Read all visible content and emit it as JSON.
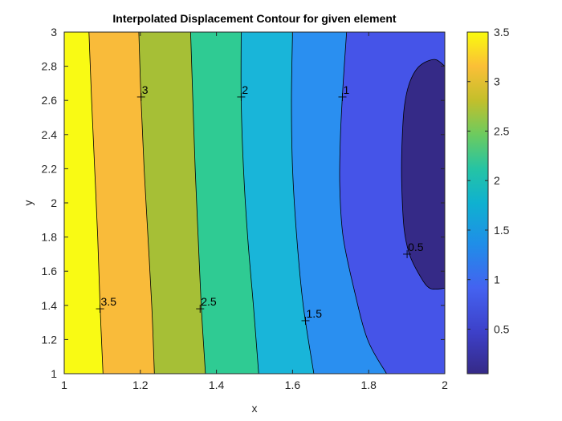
{
  "chart_data": {
    "type": "contour",
    "title": "Interpolated Displacement Contour for given element",
    "xlabel": "x",
    "ylabel": "y",
    "xlim": [
      1,
      2
    ],
    "ylim": [
      1,
      3
    ],
    "xticks": [
      "1",
      "1.2",
      "1.4",
      "1.6",
      "1.8",
      "2"
    ],
    "yticks": [
      "1",
      "1.2",
      "1.4",
      "1.6",
      "1.8",
      "2",
      "2.2",
      "2.4",
      "2.6",
      "2.8",
      "3"
    ],
    "grid": false,
    "colormap": "parula",
    "colorbar": {
      "position": "right",
      "range": [
        0.05,
        3.5
      ],
      "ticks": [
        "0.5",
        "1",
        "1.5",
        "2",
        "2.5",
        "3",
        "3.5"
      ]
    },
    "levels": [
      0.5,
      1,
      1.5,
      2,
      2.5,
      3,
      3.5
    ],
    "band_colors": [
      "#352a87",
      "#4554e8",
      "#2a8ff0",
      "#19b5d9",
      "#2fcb93",
      "#a6bf36",
      "#f9bb3a",
      "#f9fa14"
    ],
    "contour_lines": [
      {
        "level": 3.5,
        "points": [
          [
            1.065,
            3.0
          ],
          [
            1.072,
            2.6
          ],
          [
            1.08,
            2.2
          ],
          [
            1.088,
            1.8
          ],
          [
            1.094,
            1.4
          ],
          [
            1.102,
            1.0
          ]
        ]
      },
      {
        "level": 3.0,
        "points": [
          [
            1.196,
            3.0
          ],
          [
            1.202,
            2.6
          ],
          [
            1.21,
            2.2
          ],
          [
            1.22,
            1.8
          ],
          [
            1.23,
            1.4
          ],
          [
            1.237,
            1.0
          ]
        ]
      },
      {
        "level": 2.5,
        "points": [
          [
            1.332,
            3.0
          ],
          [
            1.338,
            2.6
          ],
          [
            1.344,
            2.2
          ],
          [
            1.352,
            1.8
          ],
          [
            1.36,
            1.4
          ],
          [
            1.371,
            1.0
          ]
        ]
      },
      {
        "level": 2.0,
        "points": [
          [
            1.465,
            3.0
          ],
          [
            1.465,
            2.6
          ],
          [
            1.471,
            2.2
          ],
          [
            1.482,
            1.8
          ],
          [
            1.497,
            1.4
          ],
          [
            1.511,
            1.0
          ]
        ]
      },
      {
        "level": 1.5,
        "points": [
          [
            1.6,
            3.0
          ],
          [
            1.597,
            2.6
          ],
          [
            1.6,
            2.2
          ],
          [
            1.611,
            1.8
          ],
          [
            1.628,
            1.4
          ],
          [
            1.656,
            1.0
          ]
        ]
      },
      {
        "level": 1.0,
        "points": [
          [
            1.742,
            3.0
          ],
          [
            1.733,
            2.7
          ],
          [
            1.726,
            2.4
          ],
          [
            1.724,
            2.1
          ],
          [
            1.733,
            1.8
          ],
          [
            1.761,
            1.5
          ],
          [
            1.797,
            1.2
          ],
          [
            1.847,
            1.0
          ]
        ]
      },
      {
        "level": 0.5,
        "closed_at_edge": true,
        "points": [
          [
            2.0,
            2.8
          ],
          [
            1.973,
            2.84
          ],
          [
            1.933,
            2.8
          ],
          [
            1.907,
            2.7
          ],
          [
            1.893,
            2.55
          ],
          [
            1.887,
            2.3
          ],
          [
            1.887,
            2.1
          ],
          [
            1.893,
            1.85
          ],
          [
            1.907,
            1.7
          ],
          [
            1.933,
            1.58
          ],
          [
            1.961,
            1.5
          ],
          [
            2.0,
            1.5
          ]
        ]
      }
    ],
    "contour_labels": [
      {
        "text": "3.5",
        "x": 1.094,
        "y": 1.38
      },
      {
        "text": "3",
        "x": 1.202,
        "y": 2.62
      },
      {
        "text": "2.5",
        "x": 1.357,
        "y": 1.38
      },
      {
        "text": "2",
        "x": 1.465,
        "y": 2.62
      },
      {
        "text": "1.5",
        "x": 1.634,
        "y": 1.31
      },
      {
        "text": "1",
        "x": 1.731,
        "y": 2.62
      },
      {
        "text": "0.5",
        "x": 1.901,
        "y": 1.7
      }
    ]
  }
}
